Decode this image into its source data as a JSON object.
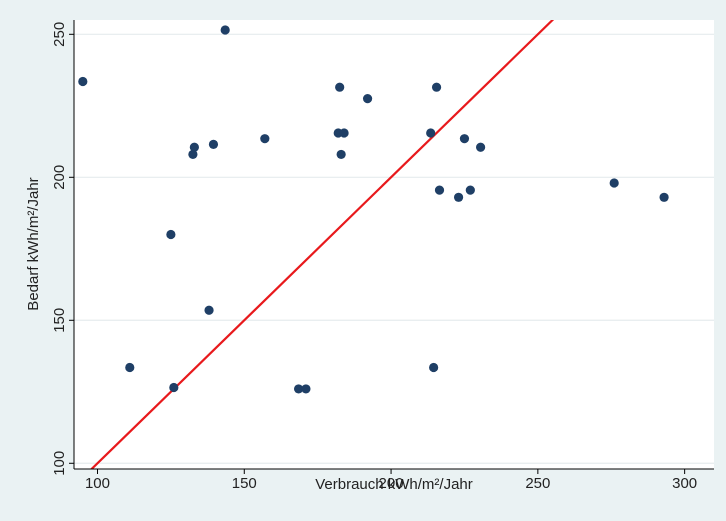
{
  "chart_data": {
    "type": "scatter",
    "xlabel": "Verbrauch kWh/m²/Jahr",
    "ylabel": "Bedarf kWh/m²/Jahr",
    "xlim": [
      92,
      310
    ],
    "ylim": [
      98,
      255
    ],
    "x_ticks": [
      100,
      150,
      200,
      250,
      300
    ],
    "y_ticks": [
      100,
      150,
      200,
      250
    ],
    "grid": true,
    "legend": "none",
    "reference_line": {
      "from": [
        97,
        97
      ],
      "to": [
        257,
        257
      ],
      "color": "#e8191c"
    },
    "marker_color": "#1f3f66",
    "background_color": "#eaf2f3",
    "plot_color": "#ffffff",
    "points": [
      {
        "x": 95,
        "y": 233.5
      },
      {
        "x": 111,
        "y": 133.5
      },
      {
        "x": 125,
        "y": 180
      },
      {
        "x": 126,
        "y": 126.5
      },
      {
        "x": 132.5,
        "y": 208
      },
      {
        "x": 133,
        "y": 210.5
      },
      {
        "x": 138,
        "y": 153.5
      },
      {
        "x": 139.5,
        "y": 211.5
      },
      {
        "x": 143.5,
        "y": 251.5
      },
      {
        "x": 157,
        "y": 213.5
      },
      {
        "x": 168.5,
        "y": 126
      },
      {
        "x": 171,
        "y": 126
      },
      {
        "x": 182,
        "y": 215.5
      },
      {
        "x": 182.5,
        "y": 231.5
      },
      {
        "x": 183,
        "y": 208
      },
      {
        "x": 184,
        "y": 215.5
      },
      {
        "x": 192,
        "y": 227.5
      },
      {
        "x": 213.5,
        "y": 215.5
      },
      {
        "x": 214.5,
        "y": 133.5
      },
      {
        "x": 215.5,
        "y": 231.5
      },
      {
        "x": 216.5,
        "y": 195.5
      },
      {
        "x": 223,
        "y": 193
      },
      {
        "x": 225,
        "y": 213.5
      },
      {
        "x": 227,
        "y": 195.5
      },
      {
        "x": 230.5,
        "y": 210.5
      },
      {
        "x": 276,
        "y": 198
      },
      {
        "x": 293,
        "y": 193
      }
    ]
  }
}
